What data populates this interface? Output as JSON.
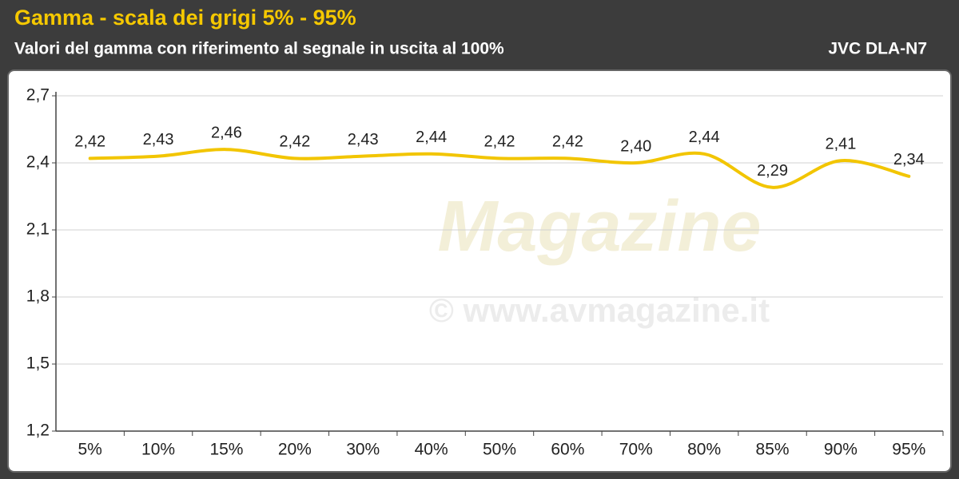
{
  "chart_data": {
    "type": "line",
    "title": "Gamma - scala dei grigi 5% - 95%",
    "subtitle": "Valori del gamma con riferimento al segnale in uscita al 100%",
    "model": "JVC DLA-N7",
    "watermark_logo": "Magazine",
    "watermark_text": "© www.avmagazine.it",
    "categories": [
      "5%",
      "10%",
      "15%",
      "20%",
      "30%",
      "40%",
      "50%",
      "60%",
      "70%",
      "80%",
      "85%",
      "90%",
      "95%"
    ],
    "values": [
      2.42,
      2.43,
      2.46,
      2.42,
      2.43,
      2.44,
      2.42,
      2.42,
      2.4,
      2.44,
      2.29,
      2.41,
      2.34
    ],
    "value_labels": [
      "2,42",
      "2,43",
      "2,46",
      "2,42",
      "2,43",
      "2,44",
      "2,42",
      "2,42",
      "2,40",
      "2,44",
      "2,29",
      "2,41",
      "2,34"
    ],
    "color": "#f2c500",
    "ylim": [
      1.2,
      2.7
    ],
    "yticks": [
      {
        "value": 1.2,
        "label": "1,2"
      },
      {
        "value": 1.5,
        "label": "1,5"
      },
      {
        "value": 1.8,
        "label": "1,8"
      },
      {
        "value": 2.1,
        "label": "2,1"
      },
      {
        "value": 2.4,
        "label": "2,4"
      },
      {
        "value": 2.7,
        "label": "2,7"
      }
    ],
    "grid": true
  }
}
